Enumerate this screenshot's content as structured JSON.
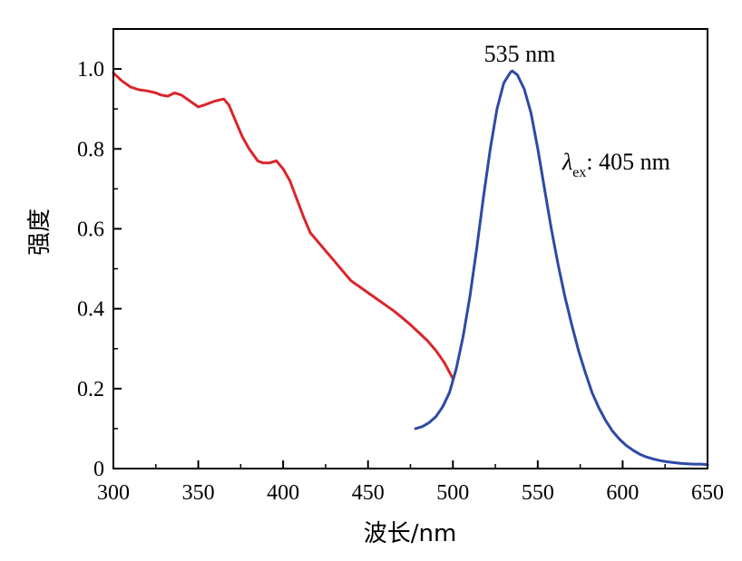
{
  "chart_data": {
    "type": "line",
    "xlabel": "波长/nm",
    "ylabel": "强度",
    "xlim": [
      300,
      650
    ],
    "ylim": [
      0,
      1.1
    ],
    "x_ticks": [
      300,
      350,
      400,
      450,
      500,
      550,
      600,
      650
    ],
    "y_ticks": [
      0,
      0.2,
      0.4,
      0.6,
      0.8,
      1.0
    ],
    "x_tick_labels": [
      "300",
      "350",
      "400",
      "450",
      "500",
      "550",
      "600",
      "650"
    ],
    "y_tick_labels": [
      "0",
      "0.2",
      "0.4",
      "0.6",
      "0.8",
      "1.0"
    ],
    "grid": false,
    "legend": "none",
    "series": [
      {
        "color": "#d9262c",
        "x": [
          300,
          305,
          310,
          315,
          320,
          325,
          328,
          332,
          336,
          340,
          345,
          350,
          355,
          360,
          365,
          368,
          372,
          376,
          380,
          385,
          388,
          392,
          396,
          400,
          404,
          408,
          412,
          416,
          420,
          425,
          430,
          435,
          440,
          445,
          450,
          455,
          460,
          465,
          470,
          475,
          480,
          485,
          490,
          495,
          500
        ],
        "y": [
          0.99,
          0.97,
          0.955,
          0.948,
          0.945,
          0.94,
          0.935,
          0.932,
          0.94,
          0.935,
          0.92,
          0.905,
          0.912,
          0.92,
          0.925,
          0.91,
          0.87,
          0.83,
          0.8,
          0.77,
          0.765,
          0.765,
          0.77,
          0.75,
          0.72,
          0.675,
          0.63,
          0.59,
          0.57,
          0.545,
          0.52,
          0.495,
          0.47,
          0.455,
          0.44,
          0.425,
          0.41,
          0.395,
          0.378,
          0.36,
          0.34,
          0.32,
          0.295,
          0.265,
          0.225
        ]
      },
      {
        "color": "#2e4aa6",
        "peak_label": "535 nm",
        "x": [
          478,
          482,
          486,
          490,
          494,
          498,
          502,
          506,
          510,
          514,
          518,
          522,
          526,
          530,
          534,
          535,
          538,
          542,
          546,
          550,
          554,
          558,
          562,
          566,
          570,
          574,
          578,
          582,
          586,
          590,
          594,
          598,
          602,
          606,
          610,
          614,
          618,
          622,
          626,
          630,
          634,
          638,
          642,
          646,
          650
        ],
        "y": [
          0.1,
          0.105,
          0.115,
          0.13,
          0.155,
          0.19,
          0.25,
          0.33,
          0.43,
          0.55,
          0.68,
          0.8,
          0.9,
          0.965,
          0.992,
          0.995,
          0.985,
          0.95,
          0.89,
          0.8,
          0.7,
          0.6,
          0.51,
          0.43,
          0.36,
          0.295,
          0.24,
          0.19,
          0.152,
          0.12,
          0.094,
          0.074,
          0.058,
          0.046,
          0.036,
          0.029,
          0.024,
          0.02,
          0.017,
          0.015,
          0.013,
          0.012,
          0.011,
          0.011,
          0.01
        ]
      }
    ],
    "annotations": {
      "peak": "535 nm",
      "excitation_symbol": "λ",
      "excitation_subscript": "ex",
      "excitation_value": ": 405 nm"
    }
  },
  "colors": {
    "axis": "#000000",
    "absorbance": "#d9262c",
    "emission": "#2e4aa6"
  }
}
